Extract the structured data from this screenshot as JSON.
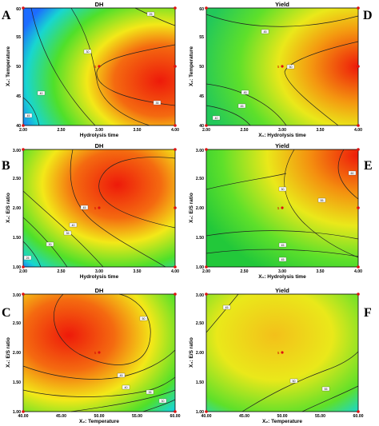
{
  "chart_data": [
    {
      "type": "heatmap",
      "letter": "A",
      "title": "DH",
      "xlabel": "Hydrolysis time",
      "ylabel": "X₂: Temperature",
      "xlim": [
        2.0,
        4.0
      ],
      "ylim": [
        40,
        60
      ],
      "xticks": [
        "2.00",
        "2.50",
        "3.00",
        "3.50",
        "4.00"
      ],
      "yticks": [
        "40",
        "45",
        "50",
        "55",
        "60"
      ],
      "contour_labels": [
        "25",
        "30",
        "35",
        "40",
        "45"
      ],
      "center_label": "5",
      "colors": {
        "low": "#1c6cff",
        "mid_low": "#18d6d0",
        "mid": "#4fe02a",
        "mid_high": "#f3e818",
        "high": "#ee1a0a"
      }
    },
    {
      "type": "heatmap",
      "letter": "D",
      "title": "Yield",
      "xlabel": "X₁: Hydrolysis time",
      "ylabel": "X₂: Temperature",
      "xlim": [
        2.0,
        4.0
      ],
      "ylim": [
        40,
        60
      ],
      "xticks": [
        "2.00",
        "2.50",
        "3.00",
        "3.50",
        "4.00"
      ],
      "yticks": [
        "40",
        "45",
        "50",
        "55",
        "60"
      ],
      "contour_labels": [
        "40",
        "45",
        "45",
        "45",
        "50"
      ],
      "center_label": "5"
    },
    {
      "type": "heatmap",
      "letter": "B",
      "title": "DH",
      "xlabel": "Hydrolysis time",
      "ylabel": "X₃: E/S ratio",
      "xlim": [
        2.0,
        4.0
      ],
      "ylim": [
        1.0,
        3.0
      ],
      "xticks": [
        "2.00",
        "2.50",
        "3.00",
        "3.50",
        "4.00"
      ],
      "yticks": [
        "1.00",
        "1.50",
        "2.00",
        "2.50",
        "3.00"
      ],
      "contour_labels": [
        "25",
        "30",
        "35",
        "40",
        "45"
      ],
      "center_label": "5"
    },
    {
      "type": "heatmap",
      "letter": "E",
      "title": "Yield",
      "xlabel": "X₁: Hydrolysis time",
      "ylabel": "X₃: E/S ratio",
      "xlim": [
        2.0,
        4.0
      ],
      "ylim": [
        1.0,
        3.0
      ],
      "xticks": [
        "2.00",
        "2.50",
        "3.00",
        "3.50",
        "4.00"
      ],
      "yticks": [
        "1.00",
        "1.50",
        "2.00",
        "2.50",
        "3.00"
      ],
      "contour_labels": [
        "45",
        "45",
        "50",
        "55",
        "60"
      ],
      "center_label": "5"
    },
    {
      "type": "heatmap",
      "letter": "C",
      "title": "DH",
      "xlabel": "X₂: Temperature",
      "ylabel": "X₃: E/S ratio",
      "xlim": [
        40,
        60
      ],
      "ylim": [
        1.0,
        3.0
      ],
      "xticks": [
        "40.00",
        "45.00",
        "50.00",
        "55.00",
        "60.00"
      ],
      "yticks": [
        "1.00",
        "1.50",
        "2.00",
        "2.50",
        "3.00"
      ],
      "contour_labels": [
        "30",
        "35",
        "40",
        "45",
        "50"
      ],
      "center_label": "5"
    },
    {
      "type": "heatmap",
      "letter": "F",
      "title": "Yield",
      "xlabel": "X₂: Temperature",
      "ylabel": "X₃: E/S ratio",
      "xlim": [
        40,
        60
      ],
      "ylim": [
        1.0,
        3.0
      ],
      "xticks": [
        "40.00",
        "45.00",
        "50.00",
        "55.00",
        "60.00"
      ],
      "yticks": [
        "1.00",
        "1.50",
        "2.00",
        "2.50",
        "3.00"
      ],
      "contour_labels": [
        "45",
        "50",
        "55"
      ],
      "center_label": "5"
    }
  ]
}
